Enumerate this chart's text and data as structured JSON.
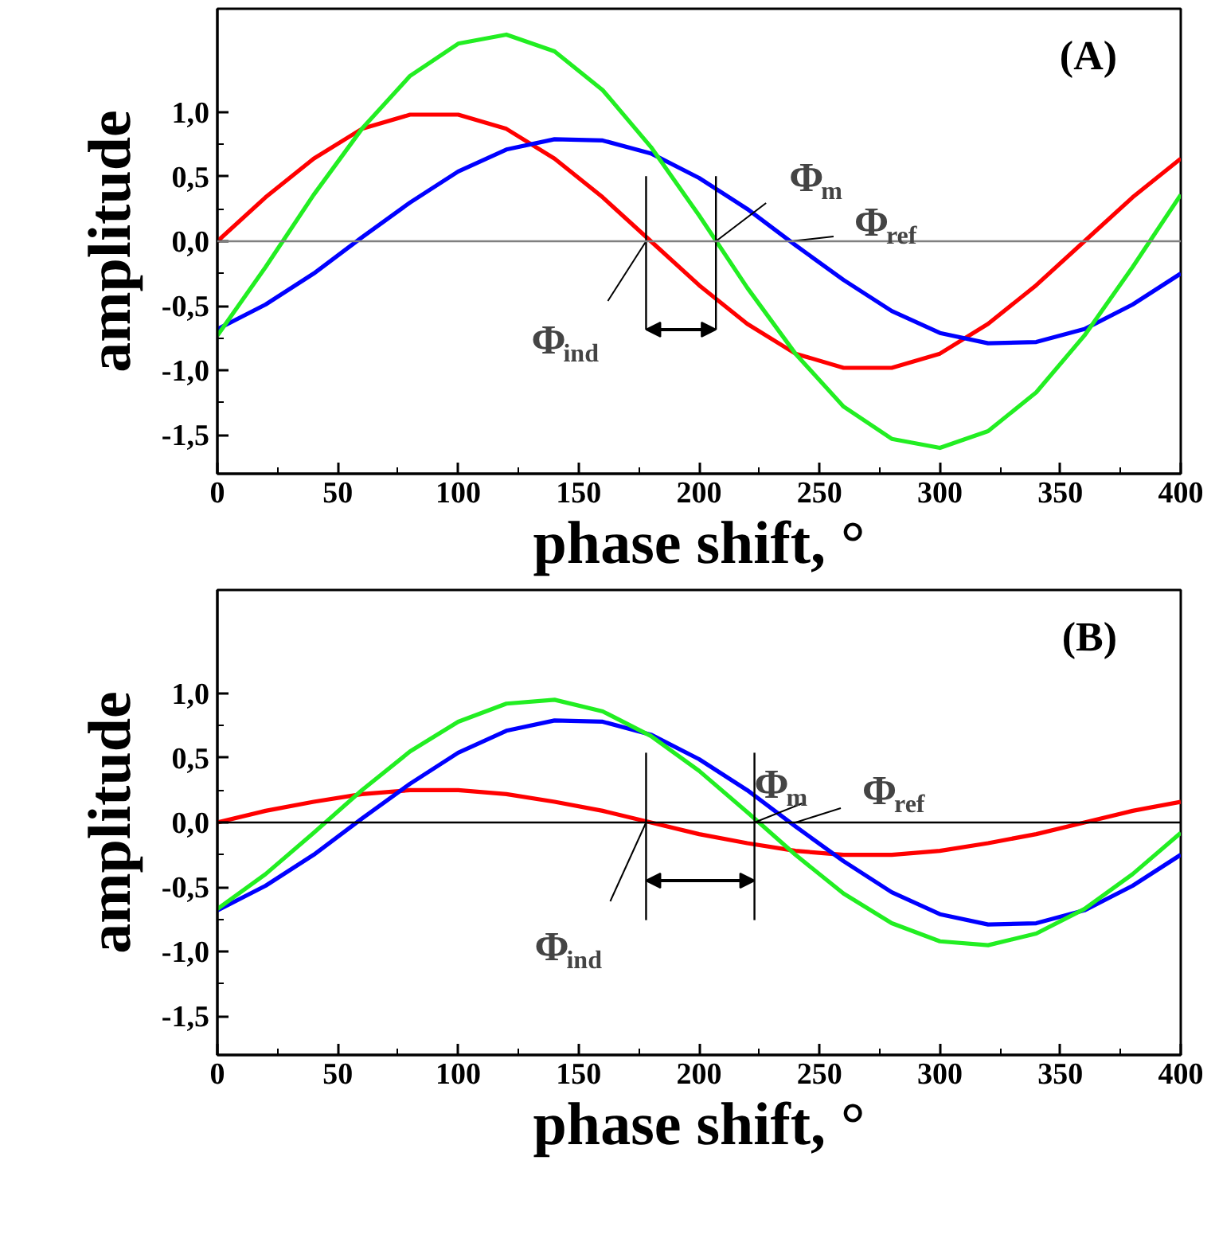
{
  "chart_data": [
    {
      "type": "line",
      "x": [
        0,
        20,
        40,
        60,
        80,
        100,
        120,
        140,
        160,
        180,
        200,
        220,
        240,
        260,
        280,
        300,
        320,
        340,
        360,
        380,
        400
      ],
      "series": [
        {
          "color": "#ff0000",
          "values": [
            0,
            0.34,
            0.64,
            0.87,
            0.98,
            0.98,
            0.87,
            0.64,
            0.34,
            0,
            -0.34,
            -0.64,
            -0.87,
            -0.98,
            -0.98,
            -0.87,
            -0.64,
            -0.34,
            0,
            0.34,
            0.64
          ]
        },
        {
          "color": "#0000ff",
          "values": [
            -0.68,
            -0.49,
            -0.25,
            0.03,
            0.3,
            0.54,
            0.71,
            0.79,
            0.78,
            0.68,
            0.49,
            0.25,
            -0.03,
            -0.3,
            -0.54,
            -0.71,
            -0.79,
            -0.78,
            -0.68,
            -0.49,
            -0.25
          ]
        },
        {
          "color": "#22ee22",
          "values": [
            -0.73,
            -0.2,
            0.36,
            0.87,
            1.28,
            1.53,
            1.6,
            1.47,
            1.17,
            0.73,
            0.2,
            -0.36,
            -0.87,
            -1.28,
            -1.53,
            -1.6,
            -1.47,
            -1.17,
            -0.73,
            -0.2,
            0.36
          ]
        }
      ],
      "xlim": [
        0,
        400
      ],
      "ylim": [
        -1.8,
        1.8
      ],
      "xticks": [
        0,
        50,
        100,
        150,
        200,
        250,
        300,
        350,
        400
      ],
      "yticks": [
        {
          "value": -1.5,
          "label": "-1,5"
        },
        {
          "value": -1.0,
          "label": "-1,0"
        },
        {
          "value": -0.5,
          "label": "-0,5"
        },
        {
          "value": 0,
          "label": "0,0"
        },
        {
          "value": 0.5,
          "label": "0,5"
        },
        {
          "value": 1.0,
          "label": "1,0"
        }
      ],
      "xlabel": "phase shift, °",
      "ylabel": "amplitude",
      "grid": false,
      "ref_lines": [
        {
          "axis": "y",
          "value": 0,
          "color": "#808080"
        },
        {
          "axis": "x",
          "value": 178,
          "color": "#000000"
        },
        {
          "axis": "x",
          "value": 207,
          "color": "#000000"
        }
      ],
      "annotations": [
        "(A)",
        {
          "text": "Φ$_{m}$",
          "x": 207,
          "y": 0
        },
        {
          "text": "Φ$_{ref}$",
          "x": 238,
          "y": 0
        },
        {
          "text": "Φ$_{ind}$",
          "x": 178,
          "y": 0
        }
      ]
    },
    {
      "type": "line",
      "x": [
        0,
        20,
        40,
        60,
        80,
        100,
        120,
        140,
        160,
        180,
        200,
        220,
        240,
        260,
        280,
        300,
        320,
        340,
        360,
        380,
        400
      ],
      "series": [
        {
          "color": "#ff0000",
          "values": [
            0,
            0.09,
            0.16,
            0.22,
            0.25,
            0.25,
            0.22,
            0.16,
            0.09,
            0,
            -0.09,
            -0.16,
            -0.22,
            -0.25,
            -0.25,
            -0.22,
            -0.16,
            -0.09,
            0,
            0.09,
            0.16
          ]
        },
        {
          "color": "#0000ff",
          "values": [
            -0.68,
            -0.49,
            -0.25,
            0.03,
            0.3,
            0.54,
            0.71,
            0.79,
            0.78,
            0.68,
            0.49,
            0.25,
            -0.03,
            -0.3,
            -0.54,
            -0.71,
            -0.79,
            -0.78,
            -0.68,
            -0.49,
            -0.25
          ]
        },
        {
          "color": "#22ee22",
          "values": [
            -0.67,
            -0.4,
            -0.08,
            0.25,
            0.55,
            0.78,
            0.92,
            0.95,
            0.86,
            0.67,
            0.4,
            0.08,
            -0.25,
            -0.55,
            -0.78,
            -0.92,
            -0.95,
            -0.86,
            -0.67,
            -0.4,
            -0.08
          ]
        }
      ],
      "xlim": [
        0,
        400
      ],
      "ylim": [
        -1.8,
        1.8
      ],
      "xticks": [
        0,
        50,
        100,
        150,
        200,
        250,
        300,
        350,
        400
      ],
      "yticks": [
        {
          "value": -1.5,
          "label": "-1,5"
        },
        {
          "value": -1.0,
          "label": "-1,0"
        },
        {
          "value": -0.5,
          "label": "-0,5"
        },
        {
          "value": 0,
          "label": "0,0"
        },
        {
          "value": 0.5,
          "label": "0,5"
        },
        {
          "value": 1.0,
          "label": "1,0"
        }
      ],
      "xlabel": "phase shift, °",
      "ylabel": "amplitude",
      "grid": false,
      "ref_lines": [
        {
          "axis": "y",
          "value": 0,
          "color": "#000000"
        },
        {
          "axis": "x",
          "value": 178,
          "color": "#000000"
        },
        {
          "axis": "x",
          "value": 223,
          "color": "#000000"
        }
      ],
      "annotations": [
        "(B)",
        {
          "text": "Φ$_{m}$",
          "x": 223,
          "y": 0
        },
        {
          "text": "Φ$_{ref}$",
          "x": 240,
          "y": 0
        },
        {
          "text": "Φ$_{ind}$",
          "x": 178,
          "y": 0
        }
      ]
    }
  ]
}
